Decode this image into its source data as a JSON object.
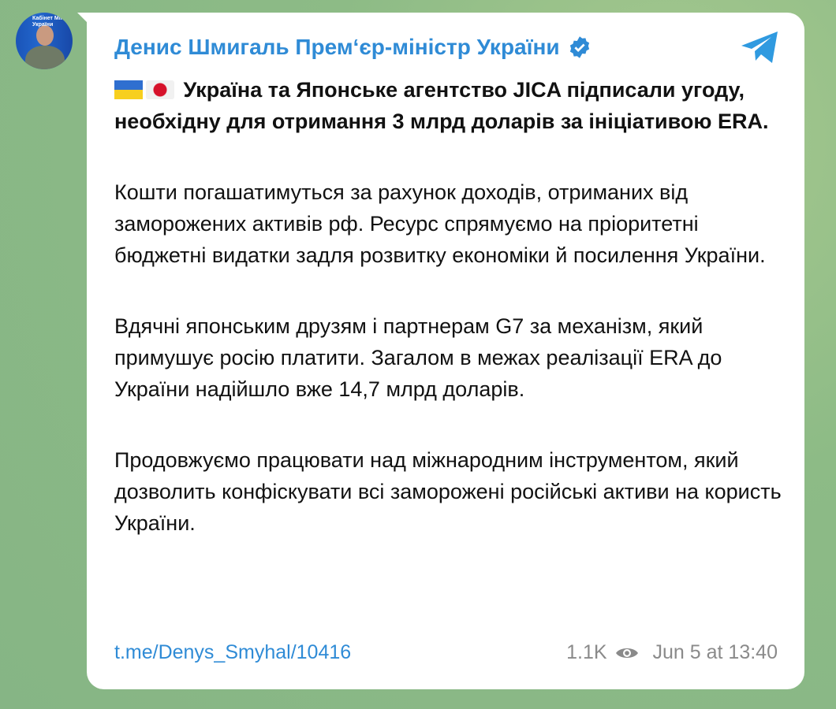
{
  "channel": {
    "name": "Денис Шмигаль Прем‘єр-міністр України",
    "avatar_caption": "Кабінет Міністрів України"
  },
  "post": {
    "headline": "Україна та Японське агентство JICA підписали угоду, необхідну для отримання 3 млрд доларів за ініціативою ERA.",
    "paragraphs": [
      "Кошти погашатимуться за рахунок доходів, отриманих від заморожених активів рф. Ресурс спрямуємо на пріоритетні бюджетні видатки задля розвитку економіки й посилення України.",
      "Вдячні японським друзям і партнерам G7 за механізм, який примушує росію платити. Загалом в межах реалізації ERA до України надійшло вже 14,7 млрд доларів.",
      "Продовжуємо працювати над міжнародним інструментом, який дозволить конфіскувати всі заморожені російські активи на користь України."
    ],
    "link": "t.me/Denys_Smyhal/10416",
    "views": "1.1K",
    "date": "Jun 5 at 13:40"
  },
  "icons": {
    "verified": "verified-badge-icon",
    "telegram": "telegram-logo-icon",
    "views": "eye-icon"
  },
  "colors": {
    "accent": "#2f8bd6",
    "background": "#8cb884"
  }
}
